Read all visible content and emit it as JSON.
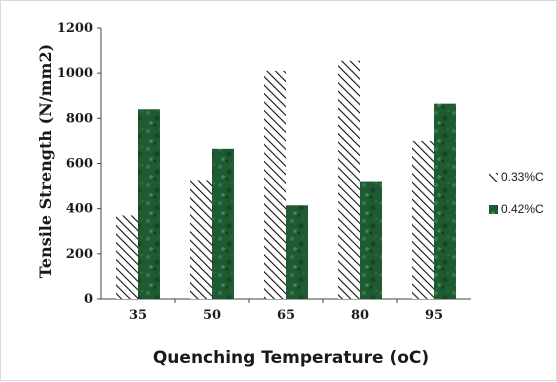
{
  "chart_data": {
    "type": "bar",
    "title": "",
    "xlabel": "Quenching Temperature (oC)",
    "ylabel": "Tensile Strength (N/mm2)",
    "ylim": [
      0,
      1200
    ],
    "yticks": [
      "0",
      "200",
      "400",
      "600",
      "800",
      "1000",
      "1200"
    ],
    "categories": [
      "35",
      "50",
      "65",
      "80",
      "95"
    ],
    "series": [
      {
        "name": "0.33%C",
        "values": [
          370,
          525,
          1010,
          1055,
          700
        ],
        "pattern": "diagonal-hatch",
        "color": "#111111"
      },
      {
        "name": "0.42%C",
        "values": [
          840,
          665,
          415,
          520,
          865
        ],
        "pattern": "dark-green-marble",
        "color": "#1f5a32"
      }
    ],
    "grid": false,
    "legend": "right"
  }
}
